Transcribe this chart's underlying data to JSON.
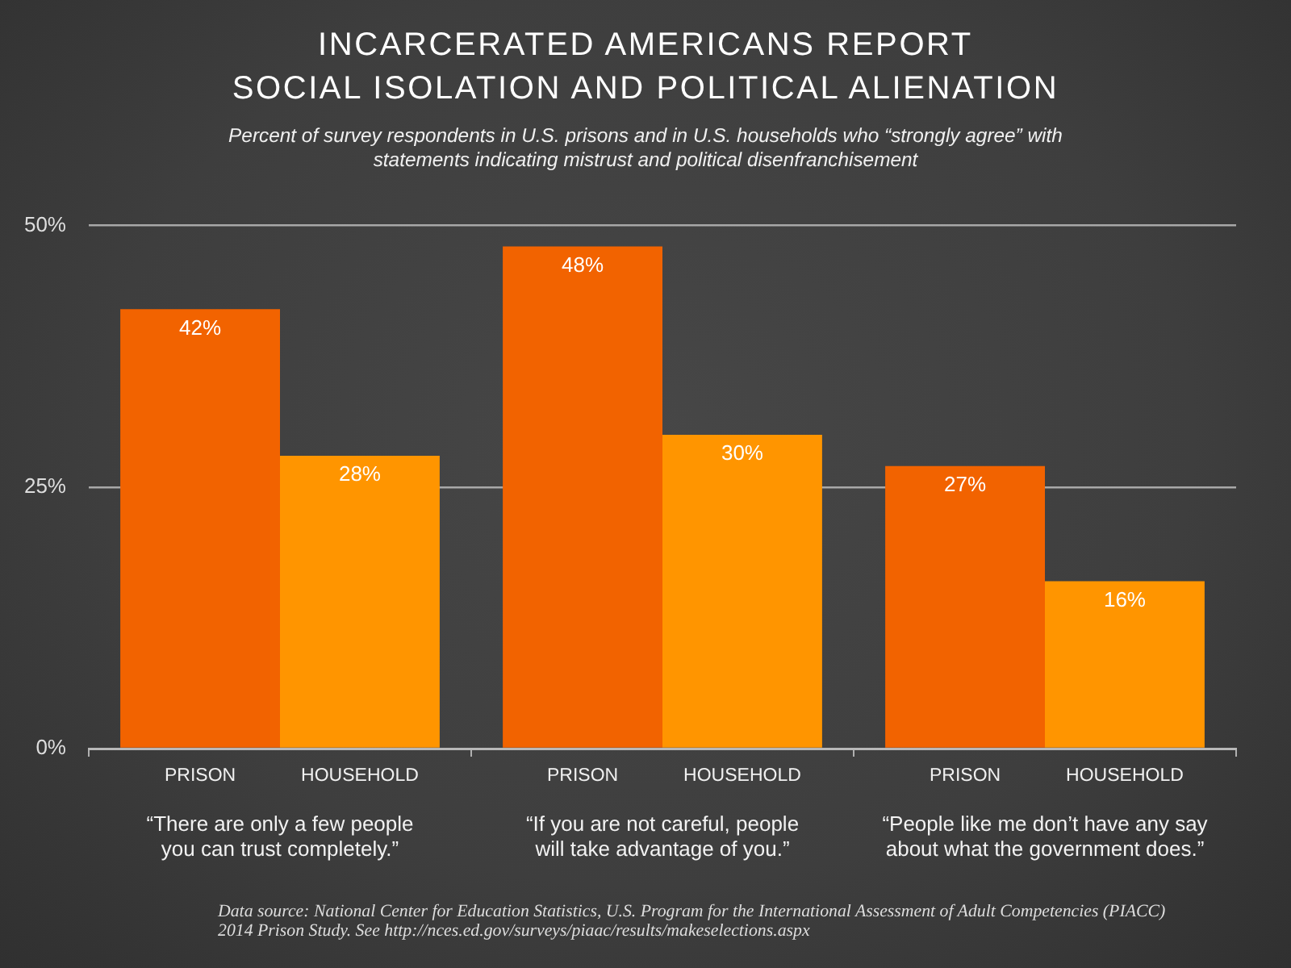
{
  "chart_data": {
    "type": "bar",
    "title": "INCARCERATED AMERICANS REPORT\nSOCIAL ISOLATION AND POLITICAL ALIENATION",
    "subtitle": "Percent of survey respondents in U.S. prisons and in U.S. households who “strongly agree” with statements indicating mistrust and political disenfranchisement",
    "categories": [
      "“There are only a few people you can trust completely.”",
      "“If you are not careful, people will take advantage of you.”",
      "“People like me don’t have any say about what the government does.”"
    ],
    "series": [
      {
        "name": "PRISON",
        "color": "#f26300",
        "values": [
          42,
          48,
          27
        ],
        "value_labels": [
          "42%",
          "48%",
          "27%"
        ]
      },
      {
        "name": "HOUSEHOLD",
        "color": "#ff9500",
        "values": [
          28,
          30,
          16
        ],
        "value_labels": [
          "28%",
          "30%",
          "16%"
        ]
      }
    ],
    "ylim": [
      0,
      50
    ],
    "yticks": [
      {
        "value": 0,
        "label": "0%"
      },
      {
        "value": 25,
        "label": "25%"
      },
      {
        "value": 50,
        "label": "50%"
      }
    ],
    "grid": "y",
    "annotations": [
      "Data source: National Center for Education Statistics, U.S. Program for the International Assessment of Adult Competencies (PIACC) 2014 Prison Study. See http://nces.ed.gov/surveys/piaac/results/makeselections.aspx"
    ]
  }
}
